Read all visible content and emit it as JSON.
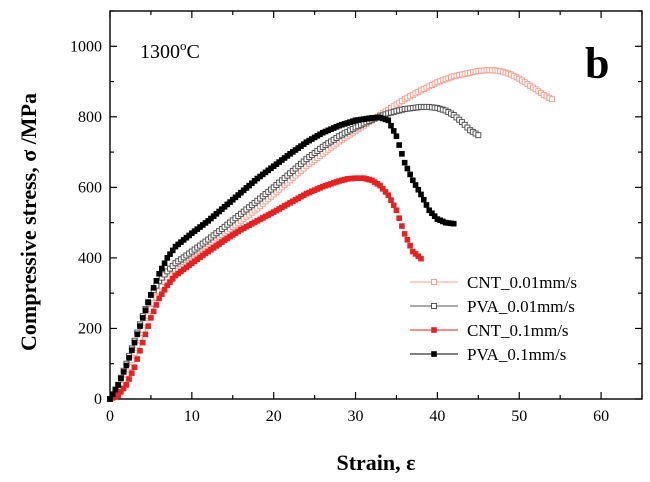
{
  "chart_data": {
    "type": "scatter",
    "panel_letter": "b",
    "annotation": {
      "base": "1300",
      "sup": "o",
      "unit": "C"
    },
    "xlabel": "Strain, ε",
    "ylabel": "Compressive stress, σ /MPa",
    "xlim": [
      0,
      65
    ],
    "ylim": [
      0,
      1100
    ],
    "xticks": [
      0,
      10,
      20,
      30,
      40,
      50,
      60
    ],
    "yticks": [
      0,
      200,
      400,
      600,
      800,
      1000
    ],
    "grid": false,
    "legend_position": "bottom-right",
    "series": [
      {
        "name": "CNT_0.01mm/s",
        "color": "#f4a090",
        "marker": "open-square",
        "points": [
          [
            0,
            0
          ],
          [
            1,
            25
          ],
          [
            2,
            70
          ],
          [
            3,
            130
          ],
          [
            4,
            195
          ],
          [
            5,
            255
          ],
          [
            6,
            305
          ],
          [
            7,
            345
          ],
          [
            8,
            378
          ],
          [
            10,
            410
          ],
          [
            12,
            440
          ],
          [
            14,
            470
          ],
          [
            16,
            505
          ],
          [
            18,
            540
          ],
          [
            20,
            580
          ],
          [
            22,
            620
          ],
          [
            24,
            660
          ],
          [
            26,
            695
          ],
          [
            28,
            730
          ],
          [
            30,
            760
          ],
          [
            32,
            790
          ],
          [
            34,
            820
          ],
          [
            36,
            850
          ],
          [
            38,
            875
          ],
          [
            40,
            898
          ],
          [
            42,
            915
          ],
          [
            44,
            925
          ],
          [
            45,
            930
          ],
          [
            46,
            932
          ],
          [
            47,
            932
          ],
          [
            48,
            928
          ],
          [
            49,
            920
          ],
          [
            50,
            908
          ],
          [
            51,
            893
          ],
          [
            52,
            878
          ],
          [
            53,
            862
          ],
          [
            54,
            850
          ]
        ]
      },
      {
        "name": "PVA_0.01mm/s",
        "color": "#555555",
        "marker": "open-square",
        "points": [
          [
            0,
            0
          ],
          [
            1,
            40
          ],
          [
            2,
            100
          ],
          [
            3,
            165
          ],
          [
            4,
            235
          ],
          [
            5,
            295
          ],
          [
            6,
            335
          ],
          [
            7,
            362
          ],
          [
            8,
            385
          ],
          [
            10,
            418
          ],
          [
            12,
            452
          ],
          [
            14,
            488
          ],
          [
            16,
            525
          ],
          [
            18,
            562
          ],
          [
            20,
            600
          ],
          [
            22,
            640
          ],
          [
            24,
            680
          ],
          [
            26,
            715
          ],
          [
            28,
            745
          ],
          [
            30,
            770
          ],
          [
            32,
            792
          ],
          [
            34,
            810
          ],
          [
            36,
            822
          ],
          [
            38,
            828
          ],
          [
            39,
            828
          ],
          [
            40,
            825
          ],
          [
            41,
            818
          ],
          [
            42,
            805
          ],
          [
            43,
            785
          ],
          [
            44,
            762
          ],
          [
            45,
            748
          ]
        ]
      },
      {
        "name": "CNT_0.1mm/s",
        "color": "#e52222",
        "marker": "filled-square",
        "points": [
          [
            0,
            0
          ],
          [
            1,
            10
          ],
          [
            2,
            40
          ],
          [
            3,
            90
          ],
          [
            4,
            160
          ],
          [
            5,
            230
          ],
          [
            6,
            285
          ],
          [
            7,
            322
          ],
          [
            8,
            350
          ],
          [
            10,
            385
          ],
          [
            12,
            418
          ],
          [
            14,
            450
          ],
          [
            16,
            480
          ],
          [
            18,
            505
          ],
          [
            20,
            530
          ],
          [
            22,
            556
          ],
          [
            24,
            582
          ],
          [
            26,
            602
          ],
          [
            28,
            618
          ],
          [
            29,
            624
          ],
          [
            30,
            626
          ],
          [
            31,
            626
          ],
          [
            32,
            620
          ],
          [
            33,
            605
          ],
          [
            34,
            578
          ],
          [
            35,
            535
          ],
          [
            36,
            468
          ],
          [
            37,
            418
          ],
          [
            38,
            398
          ]
        ]
      },
      {
        "name": "PVA_0.1mm/s",
        "color": "#000000",
        "marker": "filled-square",
        "points": [
          [
            0,
            0
          ],
          [
            1,
            40
          ],
          [
            2,
            95
          ],
          [
            3,
            160
          ],
          [
            4,
            230
          ],
          [
            5,
            295
          ],
          [
            6,
            355
          ],
          [
            7,
            400
          ],
          [
            8,
            432
          ],
          [
            10,
            470
          ],
          [
            12,
            505
          ],
          [
            14,
            545
          ],
          [
            16,
            585
          ],
          [
            18,
            625
          ],
          [
            20,
            660
          ],
          [
            22,
            695
          ],
          [
            24,
            728
          ],
          [
            26,
            755
          ],
          [
            28,
            775
          ],
          [
            30,
            790
          ],
          [
            32,
            797
          ],
          [
            33,
            798
          ],
          [
            34,
            790
          ],
          [
            35,
            745
          ],
          [
            36,
            670
          ],
          [
            37,
            620
          ],
          [
            38,
            580
          ],
          [
            39,
            535
          ],
          [
            40,
            510
          ],
          [
            41,
            500
          ],
          [
            42,
            497
          ]
        ]
      }
    ]
  }
}
